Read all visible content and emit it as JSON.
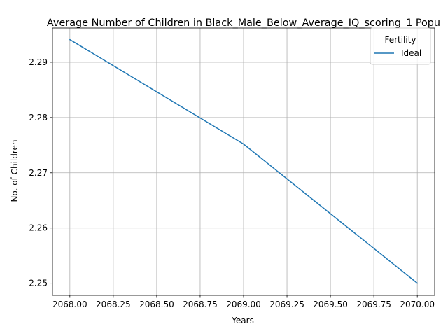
{
  "chart_data": {
    "type": "line",
    "title": "Average Number of Children in Black_Male_Below_Average_IQ_scoring_1 Popu",
    "xlabel": "Years",
    "ylabel": "No. of Children",
    "x_ticks": [
      2068.0,
      2068.25,
      2068.5,
      2068.75,
      2069.0,
      2069.25,
      2069.5,
      2069.75,
      2070.0
    ],
    "x_tick_labels": [
      "2068.00",
      "2068.25",
      "2068.50",
      "2068.75",
      "2069.00",
      "2069.25",
      "2069.50",
      "2069.75",
      "2070.00"
    ],
    "y_ticks": [
      2.25,
      2.26,
      2.27,
      2.28,
      2.29
    ],
    "y_tick_labels": [
      "2.25",
      "2.26",
      "2.27",
      "2.28",
      "2.29"
    ],
    "xlim": [
      2067.9,
      2070.1
    ],
    "ylim": [
      2.2478,
      2.2962
    ],
    "grid": true,
    "legend": {
      "title": "Fertility",
      "position": "top-right"
    },
    "series": [
      {
        "name": "Ideal",
        "color": "#1f77b4",
        "x": [
          2068,
          2069,
          2070
        ],
        "y": [
          2.2941,
          2.2752,
          2.25
        ]
      }
    ]
  }
}
